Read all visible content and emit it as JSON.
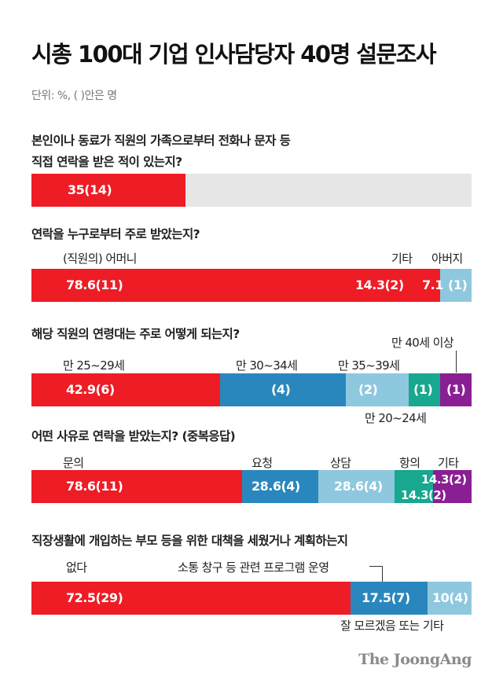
{
  "title": "시총 100대 기업 인사담당자 40명 설문조사",
  "unit_note": "단위: %, ( )안은 명",
  "source": "The JoongAng",
  "colors": {
    "red": "#ee1c25",
    "blue": "#2a87bd",
    "light_blue": "#8ec8df",
    "teal": "#17a88f",
    "purple": "#8a1f93",
    "gray": "#e6e6e6"
  },
  "chart_data": [
    {
      "type": "bar",
      "title": "본인이나 동료가 직원의 가족으로부터 전화나 문자 등\n직접 연락을 받은 적이 있는지?",
      "series": [
        {
          "name": "",
          "value": 35,
          "count": 14,
          "label": "35(14)",
          "color": "#ee1c25"
        }
      ]
    },
    {
      "type": "bar",
      "title": "연락을 누구로부터 주로 받았는지?",
      "series": [
        {
          "name": "(직원의) 어머니",
          "value": 78.6,
          "count": 11,
          "label": "78.6(11)",
          "color": "#ee1c25"
        },
        {
          "name": "기타",
          "value": 14.3,
          "count": 2,
          "label": "14.3(2)",
          "color": "#ee1c25"
        },
        {
          "name": "아버지",
          "value": 7.1,
          "count": 1,
          "label": "7.1",
          "label2": "(1)",
          "color": "#8ec8df"
        }
      ]
    },
    {
      "type": "bar",
      "title": "해당 직원의 연령대는 주로 어떻게 되는지?",
      "series": [
        {
          "name": "만 25~29세",
          "value": 42.9,
          "count": 6,
          "label": "42.9(6)",
          "color": "#ee1c25"
        },
        {
          "name": "만 30~34세",
          "count": 4,
          "label": "(4)",
          "color": "#2a87bd"
        },
        {
          "name": "만 35~39세",
          "count": 2,
          "label": "(2)",
          "color": "#8ec8df"
        },
        {
          "name": "만 20~24세",
          "count": 1,
          "label": "(1)",
          "color": "#17a88f"
        },
        {
          "name": "만 40세 이상",
          "count": 1,
          "label": "(1)",
          "color": "#8a1f93"
        }
      ]
    },
    {
      "type": "bar",
      "title": "어떤 사유로 연락을 받았는지? (중복응답)",
      "series": [
        {
          "name": "문의",
          "value": 78.6,
          "count": 11,
          "label": "78.6(11)",
          "color": "#ee1c25"
        },
        {
          "name": "요청",
          "value": 28.6,
          "count": 4,
          "label": "28.6(4)",
          "color": "#2a87bd"
        },
        {
          "name": "상담",
          "value": 28.6,
          "count": 4,
          "label": "28.6(4)",
          "color": "#8ec8df"
        },
        {
          "name": "항의",
          "value": 14.3,
          "count": 2,
          "label": "14.3(2)",
          "color": "#17a88f"
        },
        {
          "name": "기타",
          "value": 14.3,
          "count": 2,
          "label": "14.3(2)",
          "color": "#8a1f93"
        }
      ]
    },
    {
      "type": "bar",
      "title": "직장생활에 개입하는 부모 등을 위한 대책을 세웠거나 계획하는지",
      "series": [
        {
          "name": "없다",
          "value": 72.5,
          "count": 29,
          "label": "72.5(29)",
          "color": "#ee1c25"
        },
        {
          "name": "소통 창구 등 관련 프로그램 운영",
          "value": 17.5,
          "count": 7,
          "label": "17.5(7)",
          "color": "#2a87bd"
        },
        {
          "name": "잘 모르겠음 또는 기타",
          "value": 10,
          "count": 4,
          "label": "10(4)",
          "color": "#8ec8df"
        }
      ]
    }
  ]
}
